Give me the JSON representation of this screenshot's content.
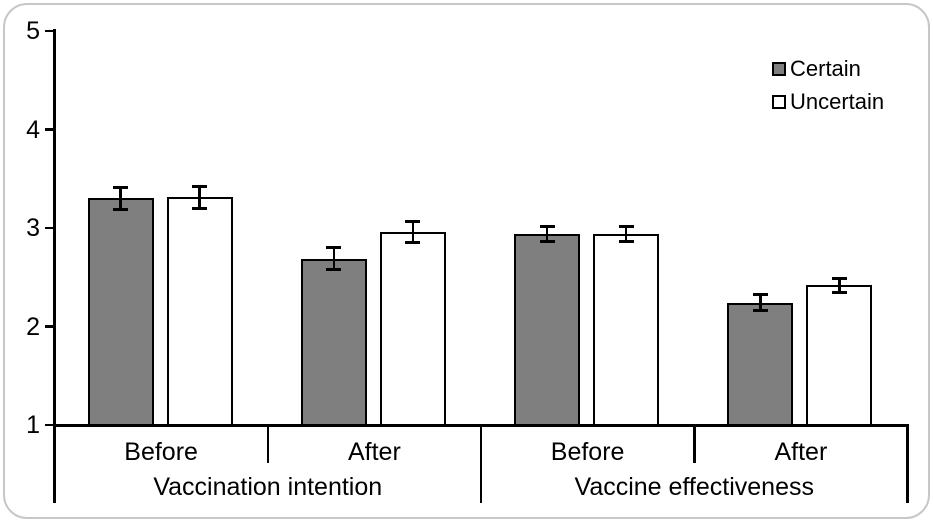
{
  "chart_data": {
    "type": "bar",
    "ylim": [
      1,
      5
    ],
    "yticks": [
      1,
      2,
      3,
      4,
      5
    ],
    "grid": false,
    "legend_position": "top-right",
    "error_bars": true,
    "category_groups": [
      {
        "label": "Vaccination intention",
        "categories": [
          "Before",
          "After"
        ]
      },
      {
        "label": "Vaccine effectiveness",
        "categories": [
          "Before",
          "After"
        ]
      }
    ],
    "series": [
      {
        "name": "Certain",
        "color": "#7f7f7f",
        "values": [
          3.3,
          2.69,
          2.94,
          2.24
        ],
        "errors": [
          0.11,
          0.11,
          0.08,
          0.08
        ]
      },
      {
        "name": "Uncertain",
        "color": "#ffffff",
        "values": [
          3.31,
          2.96,
          2.94,
          2.42
        ],
        "errors": [
          0.11,
          0.11,
          0.08,
          0.07
        ]
      }
    ]
  }
}
